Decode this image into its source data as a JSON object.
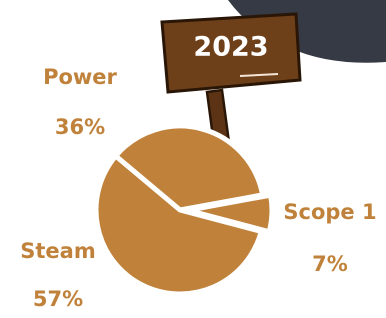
{
  "chart_data": {
    "type": "pie",
    "title": "2023",
    "categories": [
      "Power",
      "Scope 1",
      "Steam"
    ],
    "values": [
      36,
      7,
      57
    ],
    "value_labels": [
      "36%",
      "7%",
      "57%"
    ],
    "color": "#c0823a"
  }
}
